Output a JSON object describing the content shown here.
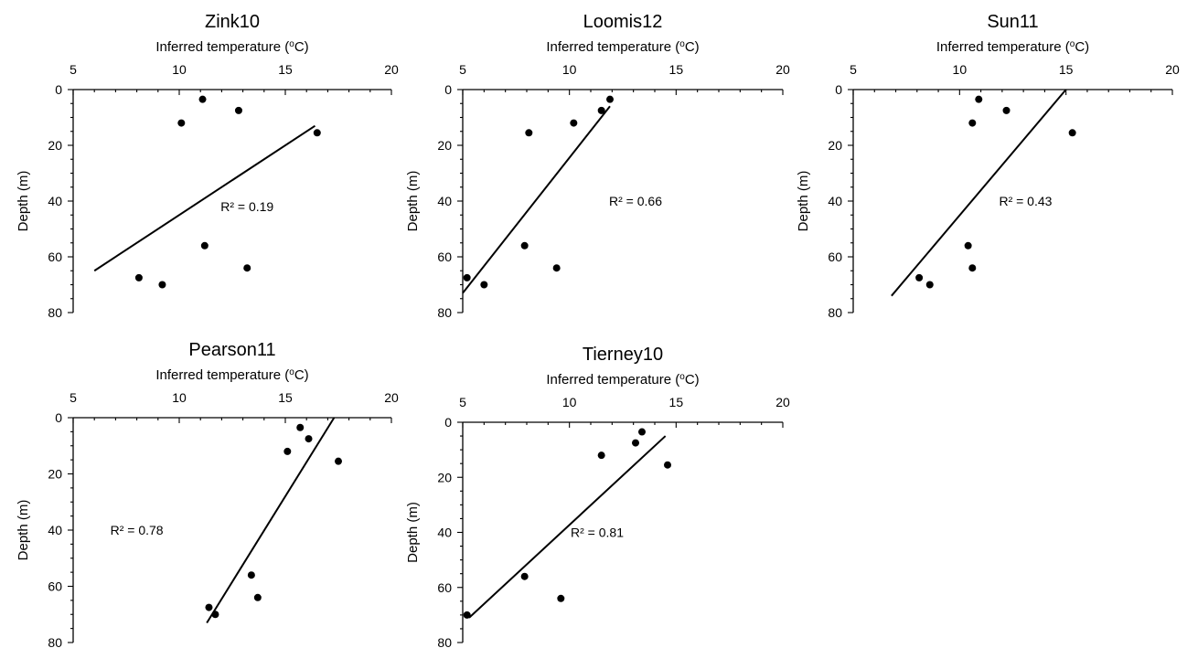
{
  "chart_data": [
    {
      "type": "scatter",
      "title": "Zink10",
      "xlabel": "Inferred temperature (",
      "xlabel_sup": "o",
      "xlabel_suffix": "C)",
      "ylabel": "Depth (m)",
      "xlim": [
        5,
        20
      ],
      "ylim": [
        0,
        80
      ],
      "x_ticks": [
        "5",
        "10",
        "15",
        "20"
      ],
      "y_ticks": [
        "0",
        "20",
        "40",
        "60",
        "80"
      ],
      "points": [
        {
          "x": 11.1,
          "y": 3.5
        },
        {
          "x": 12.8,
          "y": 7.5
        },
        {
          "x": 10.1,
          "y": 12
        },
        {
          "x": 16.5,
          "y": 15.5
        },
        {
          "x": 11.2,
          "y": 56
        },
        {
          "x": 13.2,
          "y": 64
        },
        {
          "x": 8.1,
          "y": 67.5
        },
        {
          "x": 9.2,
          "y": 70
        }
      ],
      "trendline": [
        [
          6.0,
          65
        ],
        [
          16.4,
          13
        ]
      ],
      "r2": "R² = 0.19",
      "r2_pos": {
        "x": 13.2,
        "y": 42
      }
    },
    {
      "type": "scatter",
      "title": "Loomis12",
      "xlabel": "Inferred temperature (",
      "xlabel_sup": "o",
      "xlabel_suffix": "C)",
      "ylabel": "Depth (m)",
      "xlim": [
        5,
        20
      ],
      "ylim": [
        0,
        80
      ],
      "x_ticks": [
        "5",
        "10",
        "15",
        "20"
      ],
      "y_ticks": [
        "0",
        "20",
        "40",
        "60",
        "80"
      ],
      "points": [
        {
          "x": 11.9,
          "y": 3.5
        },
        {
          "x": 11.5,
          "y": 7.5
        },
        {
          "x": 10.2,
          "y": 12
        },
        {
          "x": 8.1,
          "y": 15.5
        },
        {
          "x": 7.9,
          "y": 56
        },
        {
          "x": 9.4,
          "y": 64
        },
        {
          "x": 5.2,
          "y": 67.5
        },
        {
          "x": 6.0,
          "y": 70
        }
      ],
      "trendline": [
        [
          5.0,
          73
        ],
        [
          11.9,
          6
        ]
      ],
      "r2": "R² = 0.66",
      "r2_pos": {
        "x": 13.1,
        "y": 40
      }
    },
    {
      "type": "scatter",
      "title": "Sun11",
      "xlabel": "Inferred temperature (",
      "xlabel_sup": "o",
      "xlabel_suffix": "C)",
      "ylabel": "Depth (m)",
      "xlim": [
        5,
        20
      ],
      "ylim": [
        0,
        80
      ],
      "x_ticks": [
        "5",
        "10",
        "15",
        "20"
      ],
      "y_ticks": [
        "0",
        "20",
        "40",
        "60",
        "80"
      ],
      "points": [
        {
          "x": 10.9,
          "y": 3.5
        },
        {
          "x": 12.2,
          "y": 7.5
        },
        {
          "x": 10.6,
          "y": 12
        },
        {
          "x": 15.3,
          "y": 15.5
        },
        {
          "x": 10.4,
          "y": 56
        },
        {
          "x": 10.6,
          "y": 64
        },
        {
          "x": 8.1,
          "y": 67.5
        },
        {
          "x": 8.6,
          "y": 70
        }
      ],
      "trendline": [
        [
          6.8,
          74
        ],
        [
          15.0,
          0
        ]
      ],
      "r2": "R² = 0.43",
      "r2_pos": {
        "x": 13.1,
        "y": 40
      }
    },
    {
      "type": "scatter",
      "title": "Pearson11",
      "xlabel": "Inferred temperature (",
      "xlabel_sup": "o",
      "xlabel_suffix": "C)",
      "ylabel": "Depth (m)",
      "xlim": [
        5,
        20
      ],
      "ylim": [
        0,
        80
      ],
      "x_ticks": [
        "5",
        "10",
        "15",
        "20"
      ],
      "y_ticks": [
        "0",
        "20",
        "40",
        "60",
        "80"
      ],
      "points": [
        {
          "x": 15.7,
          "y": 3.5
        },
        {
          "x": 16.1,
          "y": 7.5
        },
        {
          "x": 15.1,
          "y": 12
        },
        {
          "x": 17.5,
          "y": 15.5
        },
        {
          "x": 13.4,
          "y": 56
        },
        {
          "x": 13.7,
          "y": 64
        },
        {
          "x": 11.4,
          "y": 67.5
        },
        {
          "x": 11.7,
          "y": 70
        }
      ],
      "trendline": [
        [
          11.3,
          73
        ],
        [
          17.3,
          0
        ]
      ],
      "r2": "R² = 0.78",
      "r2_pos": {
        "x": 8.0,
        "y": 40
      }
    },
    {
      "type": "scatter",
      "title": "Tierney10",
      "xlabel": "Inferred temperature (",
      "xlabel_sup": "o",
      "xlabel_suffix": "C)",
      "ylabel": "Depth (m)",
      "xlim": [
        5,
        20
      ],
      "ylim": [
        0,
        80
      ],
      "x_ticks": [
        "5",
        "10",
        "15",
        "20"
      ],
      "y_ticks": [
        "0",
        "20",
        "40",
        "60",
        "80"
      ],
      "points": [
        {
          "x": 13.4,
          "y": 3.5
        },
        {
          "x": 13.1,
          "y": 7.5
        },
        {
          "x": 11.5,
          "y": 12
        },
        {
          "x": 14.6,
          "y": 15.5
        },
        {
          "x": 7.9,
          "y": 56
        },
        {
          "x": 9.6,
          "y": 64
        },
        {
          "x": 5.2,
          "y": 70
        }
      ],
      "trendline": [
        [
          5.3,
          71
        ],
        [
          14.5,
          5
        ]
      ],
      "r2": "R² = 0.81",
      "r2_pos": {
        "x": 11.3,
        "y": 40
      }
    }
  ]
}
